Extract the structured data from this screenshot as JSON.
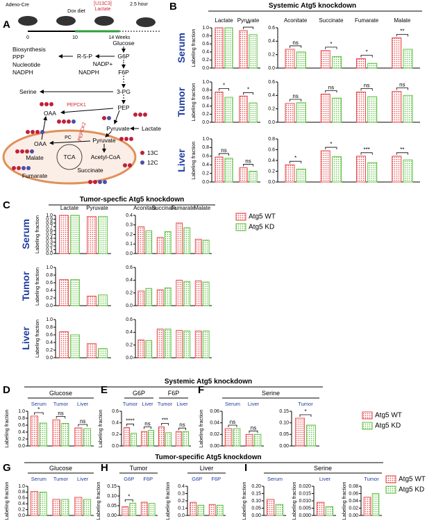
{
  "panel_letters": [
    "A",
    "B",
    "C",
    "D",
    "E",
    "F",
    "G",
    "H",
    "I"
  ],
  "headers": [
    "Systemic Atg5 knockdown",
    "Tumor-specfic Atg5 knockdown",
    "Systemic Atg5 knockdown",
    "Tumor-specific Atg5 knockdown"
  ],
  "row_labels": [
    "Serum",
    "Tumor",
    "Liver"
  ],
  "y_axis_label": "Labeling fraction",
  "series": [
    {
      "name": "Atg5 WT",
      "color": "#e8474a"
    },
    {
      "name": "Atg5 KD",
      "color": "#5cbf3f"
    }
  ],
  "diagram": {
    "timeline": [
      "Adeno-Cre",
      "Dox diet",
      "[U13C3]",
      "Lactate",
      "2.5 hour",
      "0",
      "10",
      "14 Weeks"
    ],
    "nodes": [
      "Glucose",
      "G6P",
      "F6P",
      "R-5-P",
      "NADP+",
      "NADPH",
      "Biosynthesis",
      "PPP",
      "Nucleotide",
      "NADPH",
      "Serine",
      "3-PG",
      "PEP",
      "PEPCK1",
      "PEPCK2",
      "OAA",
      "Pyruvate",
      "Lactate",
      "PC",
      "OAA",
      "Pyruvate",
      "Malate",
      "TCA",
      "Acetyl-CoA",
      "Succinate",
      "Fumarate",
      "13C",
      "12C"
    ]
  },
  "chart_data": [
    {
      "type": "bar",
      "categories": [
        "Lactate",
        "Pyruvate"
      ],
      "series": [
        {
          "values": [
            1.0,
            0.93
          ]
        },
        {
          "values": [
            1.0,
            0.83
          ]
        }
      ],
      "significance": [
        null,
        "**"
      ],
      "ylim": [
        0,
        1
      ],
      "yticks": [
        {
          "value": 0,
          "label": "0.0"
        },
        0.2,
        0.4,
        0.6,
        0.8,
        {
          "value": 1,
          "label": "1.0"
        }
      ]
    },
    {
      "type": "bar",
      "categories": [
        "Aconitate",
        "Succinate",
        "Fumarate",
        "Malate"
      ],
      "series": [
        {
          "values": [
            0.28,
            0.26,
            0.14,
            0.45
          ]
        },
        {
          "values": [
            0.24,
            0.17,
            0.07,
            0.28
          ]
        }
      ],
      "significance": [
        "ns",
        "*",
        "*",
        "**"
      ],
      "ylim": [
        0,
        0.6
      ],
      "yticks": [
        {
          "value": 0,
          "label": "0.0"
        },
        0.2,
        0.4,
        0.6
      ]
    },
    {
      "type": "bar",
      "series": [
        {
          "values": [
            0.75,
            0.65
          ]
        },
        {
          "values": [
            0.62,
            0.48
          ]
        }
      ],
      "significance": [
        "*",
        "*"
      ],
      "ylim": [
        0,
        1
      ],
      "yticks": [
        {
          "value": 0,
          "label": "0.0"
        },
        0.2,
        0.4,
        0.6,
        0.8,
        {
          "value": 1,
          "label": "1.0"
        }
      ]
    },
    {
      "type": "bar",
      "series": [
        {
          "values": [
            0.28,
            0.42,
            0.45,
            0.46
          ]
        },
        {
          "values": [
            0.29,
            0.36,
            0.38,
            0.4
          ]
        }
      ],
      "significance": [
        "ns",
        "ns",
        "ns",
        "ns"
      ],
      "ylim": [
        0,
        0.6
      ],
      "yticks": [
        {
          "value": 0,
          "label": "0.0"
        },
        0.2,
        0.4,
        0.6
      ]
    },
    {
      "type": "bar",
      "series": [
        {
          "values": [
            0.58,
            0.33
          ]
        },
        {
          "values": [
            0.55,
            0.25
          ]
        }
      ],
      "significance": [
        "ns",
        "ns"
      ],
      "ylim": [
        0,
        1
      ],
      "yticks": [
        {
          "value": 0,
          "label": "0.0"
        },
        0.2,
        0.4,
        0.6,
        0.8,
        {
          "value": 1,
          "label": "1.0"
        }
      ]
    },
    {
      "type": "bar",
      "series": [
        {
          "values": [
            0.32,
            0.58,
            0.48,
            0.48
          ]
        },
        {
          "values": [
            0.24,
            0.47,
            0.36,
            0.41
          ]
        }
      ],
      "significance": [
        "*",
        "*",
        "***",
        "**"
      ],
      "ylim": [
        0,
        0.8
      ],
      "yticks": [
        {
          "value": 0,
          "label": "0.0"
        },
        0.2,
        0.4,
        0.6,
        0.8
      ]
    },
    {
      "type": "bar",
      "categories": [
        "Lactate",
        "Pyruvate"
      ],
      "series": [
        {
          "values": [
            1.0,
            0.97
          ]
        },
        {
          "values": [
            1.0,
            0.97
          ]
        }
      ],
      "ylim": [
        0,
        1
      ],
      "yticks": [
        {
          "value": 0,
          "label": "0.0"
        },
        0.1,
        0.2,
        0.3,
        0.4,
        0.5,
        0.6,
        0.7,
        0.8,
        0.9,
        {
          "value": 1,
          "label": "1.0"
        }
      ]
    },
    {
      "type": "bar",
      "categories": [
        "Aconitate",
        "Succinate",
        "Fumarate",
        "Malate"
      ],
      "series": [
        {
          "values": [
            0.28,
            0.17,
            0.32,
            0.15
          ]
        },
        {
          "values": [
            0.24,
            0.23,
            0.27,
            0.14
          ]
        }
      ],
      "ylim": [
        0,
        0.4
      ],
      "yticks": [
        {
          "value": 0,
          "label": "0.0"
        },
        0.1,
        0.2,
        0.3,
        0.4
      ]
    },
    {
      "type": "bar",
      "series": [
        {
          "values": [
            0.68,
            0.25
          ]
        },
        {
          "values": [
            0.68,
            0.28
          ]
        }
      ],
      "ylim": [
        0,
        1
      ],
      "yticks": [
        {
          "value": 0,
          "label": "0.0"
        },
        0.2,
        0.4,
        0.6,
        0.8,
        {
          "value": 1,
          "label": "1.0"
        }
      ]
    },
    {
      "type": "bar",
      "series": [
        {
          "values": [
            0.23,
            0.25,
            0.4,
            0.39
          ]
        },
        {
          "values": [
            0.27,
            0.28,
            0.38,
            0.37
          ]
        }
      ],
      "ylim": [
        0,
        0.6
      ],
      "yticks": [
        {
          "value": 0,
          "label": "0.0"
        },
        0.2,
        0.4,
        0.6
      ]
    },
    {
      "type": "bar",
      "series": [
        {
          "values": [
            0.68,
            0.37
          ]
        },
        {
          "values": [
            0.6,
            0.24
          ]
        }
      ],
      "ylim": [
        0,
        1
      ],
      "yticks": [
        {
          "value": 0,
          "label": "0.0"
        },
        0.2,
        0.4,
        0.6,
        0.8,
        {
          "value": 1,
          "label": "1.0"
        }
      ]
    },
    {
      "type": "bar",
      "series": [
        {
          "values": [
            0.28,
            0.45,
            0.43,
            0.42
          ]
        },
        {
          "values": [
            0.27,
            0.45,
            0.42,
            0.42
          ]
        }
      ],
      "ylim": [
        0,
        0.6
      ],
      "yticks": [
        {
          "value": 0,
          "label": "0.0"
        },
        0.2,
        0.4,
        0.6
      ]
    },
    {
      "type": "bar",
      "title": "Glucose",
      "categories": [
        "Serum",
        "Tumor",
        "Liver"
      ],
      "series": [
        {
          "values": [
            0.86,
            0.75,
            0.52
          ]
        },
        {
          "values": [
            0.66,
            0.65,
            0.5
          ]
        }
      ],
      "significance": [
        "*",
        "ns",
        "ns"
      ],
      "ylim": [
        0,
        1
      ],
      "yticks": [
        {
          "value": 0,
          "label": "0.0"
        },
        0.2,
        0.4,
        0.6,
        0.8,
        {
          "value": 1,
          "label": "1.0"
        }
      ]
    },
    {
      "type": "bar",
      "category_groups": [
        "G6P",
        "F6P"
      ],
      "categories": [
        "Tumor",
        "Liver",
        "Tumor",
        "Liver"
      ],
      "series": [
        {
          "values": [
            0.32,
            0.25,
            0.33,
            0.25
          ]
        },
        {
          "values": [
            0.22,
            0.27,
            0.23,
            0.25
          ]
        }
      ],
      "significance": [
        "****",
        "ns",
        "***",
        "ns"
      ],
      "ylim": [
        0,
        0.6
      ],
      "yticks": [
        {
          "value": 0,
          "label": "0.0"
        },
        0.2,
        0.4,
        0.6
      ]
    },
    {
      "type": "bar",
      "title": "Serine",
      "categories": [
        "Serum",
        "Liver"
      ],
      "series": [
        {
          "values": [
            0.03,
            0.02
          ]
        },
        {
          "values": [
            0.03,
            0.02
          ]
        }
      ],
      "significance": [
        "ns",
        "ns"
      ],
      "ylim": [
        0,
        0.06
      ],
      "yticks": [
        {
          "value": 0,
          "label": "0.00"
        },
        0.02,
        0.04,
        0.06
      ]
    },
    {
      "type": "bar",
      "categories": [
        "Tumor"
      ],
      "series": [
        {
          "values": [
            0.12
          ]
        },
        {
          "values": [
            0.09
          ]
        }
      ],
      "significance": [
        "*"
      ],
      "ylim": [
        0,
        0.15
      ],
      "yticks": [
        {
          "value": 0,
          "label": "0.00"
        },
        0.05,
        {
          "value": 0.1,
          "label": "0.10"
        },
        0.15
      ]
    },
    {
      "type": "bar",
      "title": "Glucose",
      "categories": [
        "Serum",
        "Tumor",
        "Liver"
      ],
      "series": [
        {
          "values": [
            0.82,
            0.55,
            0.62
          ]
        },
        {
          "values": [
            0.8,
            0.55,
            0.55
          ]
        }
      ],
      "ylim": [
        0,
        1
      ],
      "yticks": [
        {
          "value": 0,
          "label": "0.0"
        },
        0.2,
        0.4,
        0.6,
        0.8,
        {
          "value": 1,
          "label": "1.0"
        }
      ]
    },
    {
      "type": "bar",
      "title": "Tumor",
      "categories": [
        "G6P",
        "F6P"
      ],
      "series": [
        {
          "values": [
            0.045,
            0.068
          ]
        },
        {
          "values": [
            0.063,
            0.062
          ]
        }
      ],
      "significance": [
        "*",
        null
      ],
      "ylim": [
        0,
        0.15
      ],
      "yticks": [
        {
          "value": 0,
          "label": "0.00"
        },
        0.05,
        {
          "value": 0.1,
          "label": "0.10"
        },
        0.15
      ]
    },
    {
      "type": "bar",
      "title": "Liver",
      "categories": [
        "G6P",
        "F6P"
      ],
      "series": [
        {
          "values": [
            0.18,
            0.15
          ]
        },
        {
          "values": [
            0.14,
            0.14
          ]
        }
      ],
      "ylim": [
        0,
        0.4
      ],
      "yticks": [
        {
          "value": 0,
          "label": "0.0"
        },
        0.1,
        0.2,
        0.3,
        0.4
      ]
    },
    {
      "type": "bar",
      "title": "Serine",
      "categories": [
        "Serum"
      ],
      "series": [
        {
          "values": [
            0.11
          ]
        },
        {
          "values": [
            0.075
          ]
        }
      ],
      "ylim": [
        0,
        0.2
      ],
      "yticks": [
        {
          "value": 0,
          "label": "0.00"
        },
        0.05,
        {
          "value": 0.1,
          "label": "0.10"
        },
        0.15,
        {
          "value": 0.2,
          "label": "0.20"
        }
      ]
    },
    {
      "type": "bar",
      "categories": [
        "Liver"
      ],
      "series": [
        {
          "values": [
            0.009
          ]
        },
        {
          "values": [
            0.006
          ]
        }
      ],
      "ylim": [
        0,
        0.02
      ],
      "yticks": [
        {
          "value": 0,
          "label": "0.000"
        },
        0.005,
        {
          "value": 0.01,
          "label": "0.010"
        },
        0.015,
        {
          "value": 0.02,
          "label": "0.020"
        }
      ]
    },
    {
      "type": "bar",
      "categories": [
        "Tumor"
      ],
      "series": [
        {
          "values": [
            0.05
          ]
        },
        {
          "values": [
            0.06
          ]
        }
      ],
      "ylim": [
        0,
        0.08
      ],
      "yticks": [
        {
          "value": 0,
          "label": "0.00"
        },
        0.02,
        0.04,
        0.06,
        0.08
      ]
    }
  ]
}
